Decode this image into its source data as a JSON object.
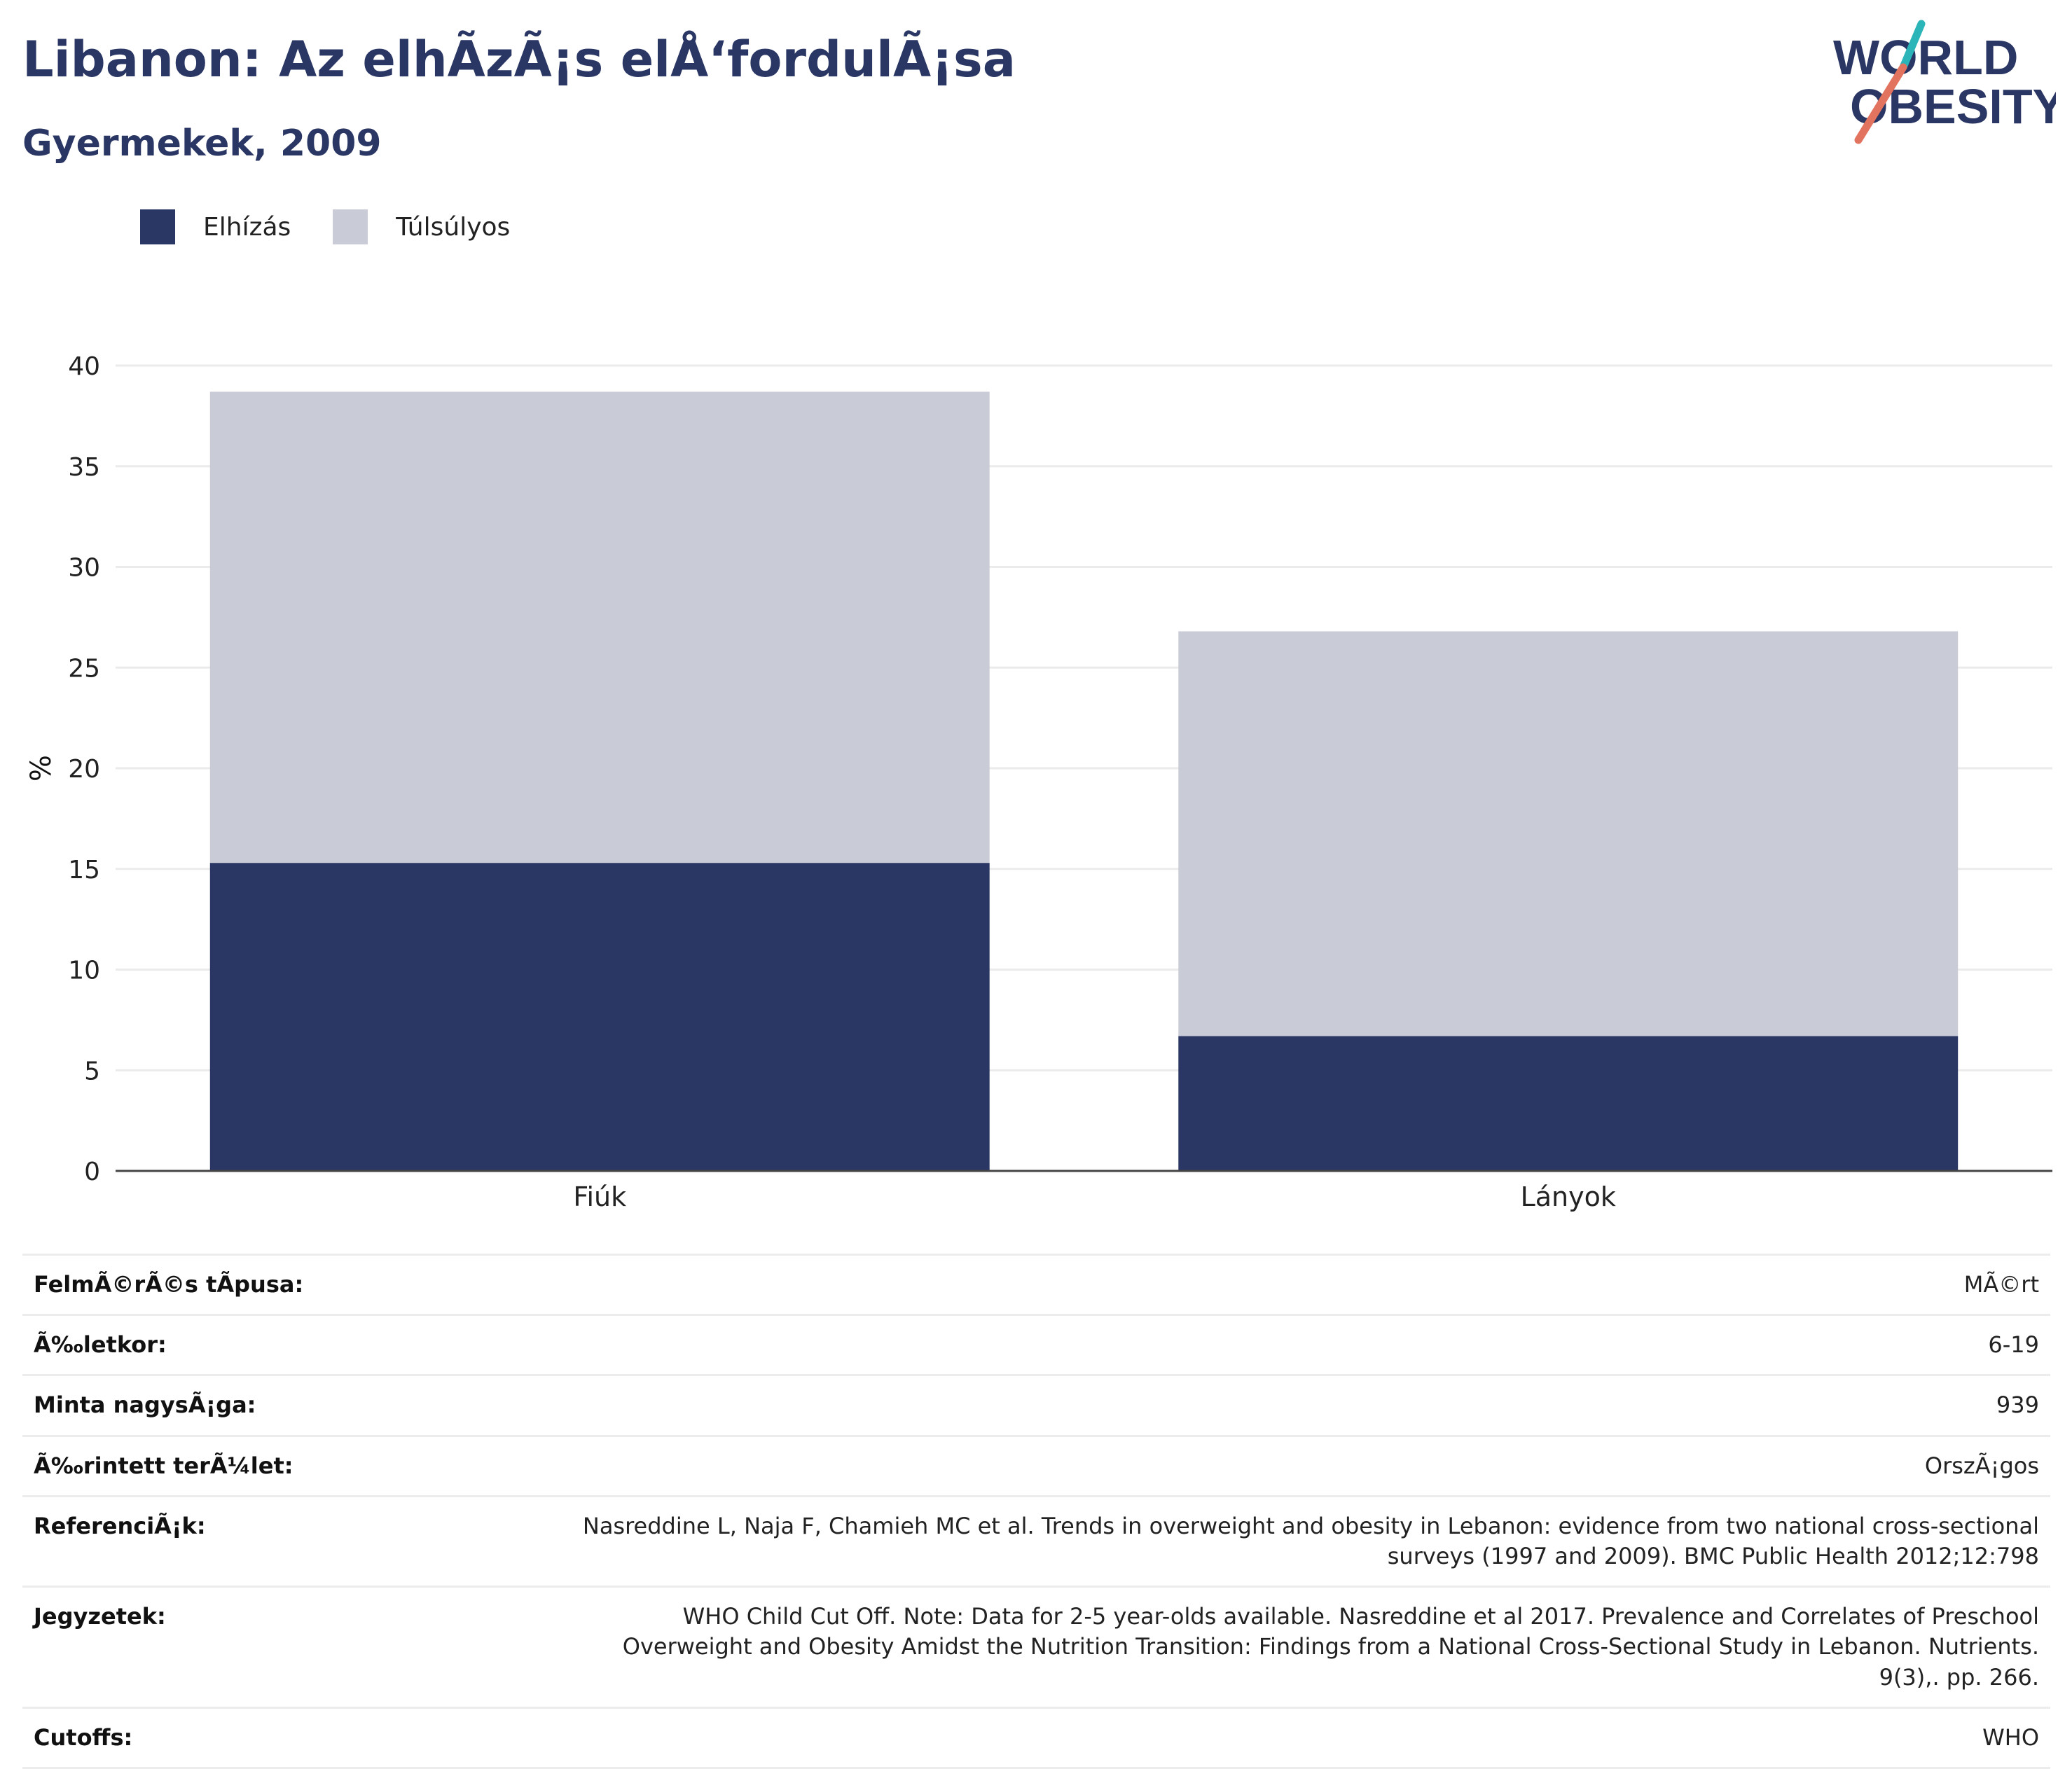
{
  "title": "Libanon: Az elhÃzÃ¡s elÅ‘fordulÃ¡sa",
  "subtitle": "Gyermekek, 2009",
  "logo": {
    "line1": "WORLD",
    "line2": "OBESITY"
  },
  "colors": {
    "obese": "#2a3663",
    "overweight": "#c9cbd6",
    "accent_teal": "#2bb5b8",
    "accent_coral": "#e2735f",
    "text_navy": "#2a3663"
  },
  "legend": [
    {
      "label": "Elhízás",
      "color": "#2a3663"
    },
    {
      "label": "Túlsúlyos",
      "color": "#c9cbd6"
    }
  ],
  "chart_data": {
    "type": "bar",
    "stacked": true,
    "categories": [
      "Fiúk",
      "Lányok"
    ],
    "series": [
      {
        "name": "Elhízás",
        "values": [
          15.3,
          6.7
        ]
      },
      {
        "name": "Túlsúlyos",
        "values": [
          23.4,
          20.1
        ]
      }
    ],
    "ylabel": "%",
    "ylim": [
      0,
      40
    ],
    "yticks": [
      0,
      5,
      10,
      15,
      20,
      25,
      30,
      35,
      40
    ],
    "grid": true
  },
  "info": [
    {
      "label": "FelmÃ©rÃ©s tÃpusa:",
      "value": "MÃ©rt"
    },
    {
      "label": "Ã‰letkor:",
      "value": "6-19"
    },
    {
      "label": "Minta nagysÃ¡ga:",
      "value": "939"
    },
    {
      "label": "Ã‰rintett terÃ¼let:",
      "value": "OrszÃ¡gos"
    },
    {
      "label": "ReferenciÃ¡k:",
      "value": "Nasreddine L, Naja F, Chamieh MC et al. Trends in overweight and obesity in Lebanon: evidence from two national cross-sectional surveys (1997 and 2009). BMC Public Health 2012;12:798"
    },
    {
      "label": "Jegyzetek:",
      "value": "WHO Child Cut Off. Note: Data for 2-5 year-olds available. Nasreddine et al 2017. Prevalence and Correlates of Preschool Overweight and Obesity Amidst the Nutrition Transition: Findings from a National Cross-Sectional Study in Lebanon. Nutrients. 9(3),. pp. 266."
    },
    {
      "label": "Cutoffs:",
      "value": "WHO"
    }
  ]
}
